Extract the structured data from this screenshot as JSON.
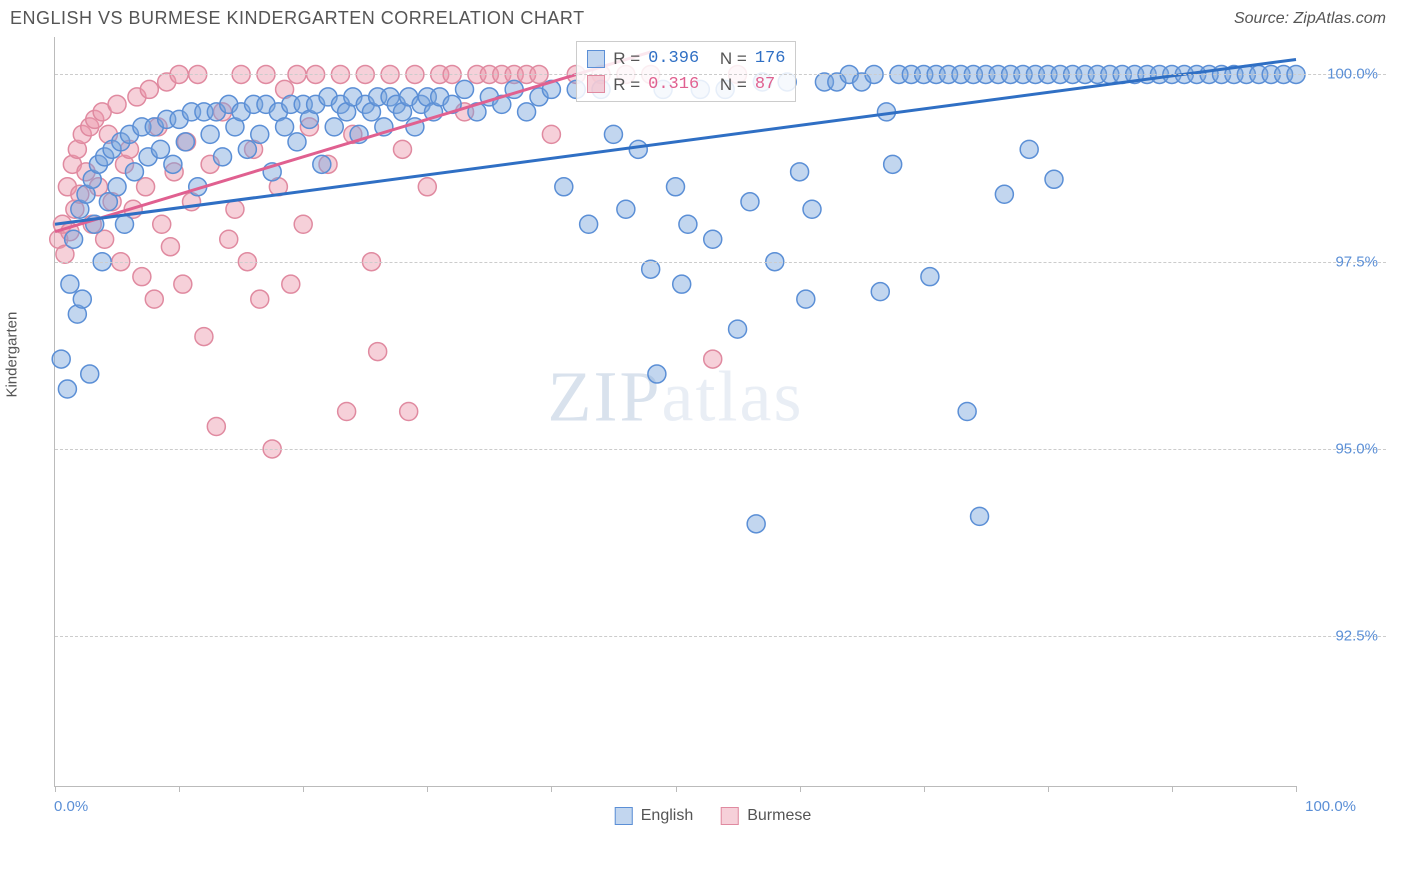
{
  "title": "ENGLISH VS BURMESE KINDERGARTEN CORRELATION CHART",
  "source": "Source: ZipAtlas.com",
  "ylabel": "Kindergarten",
  "watermark": {
    "part1": "ZIP",
    "part2": "atlas"
  },
  "axes": {
    "xlim": [
      0,
      100
    ],
    "ylim": [
      90.5,
      100.5
    ],
    "xticks": [
      0,
      10,
      20,
      30,
      40,
      50,
      60,
      70,
      80,
      90,
      100
    ],
    "yticks": [
      92.5,
      95.0,
      97.5,
      100.0
    ],
    "ytick_labels": [
      "92.5%",
      "95.0%",
      "97.5%",
      "100.0%"
    ],
    "x_left_label": "0.0%",
    "x_right_label": "100.0%",
    "grid_color": "#cccccc",
    "axis_color": "#bbbbbb",
    "tick_label_color": "#5b8fd6"
  },
  "series": {
    "english": {
      "label": "English",
      "color_fill": "rgba(120,165,220,0.45)",
      "color_stroke": "#5b8fd6",
      "line_color": "#2f6fc4",
      "marker_radius": 9,
      "stroke_width": 1.5,
      "line_width": 3,
      "regression": {
        "x1": 0,
        "y1": 98.0,
        "x2": 100,
        "y2": 100.2
      },
      "R_label": "R =",
      "R": "0.396",
      "N_label": "N =",
      "N": "176",
      "points": [
        [
          0.5,
          96.2
        ],
        [
          1,
          95.8
        ],
        [
          1.2,
          97.2
        ],
        [
          1.5,
          97.8
        ],
        [
          1.8,
          96.8
        ],
        [
          2,
          98.2
        ],
        [
          2.2,
          97.0
        ],
        [
          2.5,
          98.4
        ],
        [
          2.8,
          96.0
        ],
        [
          3,
          98.6
        ],
        [
          3.2,
          98.0
        ],
        [
          3.5,
          98.8
        ],
        [
          3.8,
          97.5
        ],
        [
          4,
          98.9
        ],
        [
          4.3,
          98.3
        ],
        [
          4.6,
          99.0
        ],
        [
          5,
          98.5
        ],
        [
          5.3,
          99.1
        ],
        [
          5.6,
          98.0
        ],
        [
          6,
          99.2
        ],
        [
          6.4,
          98.7
        ],
        [
          7,
          99.3
        ],
        [
          7.5,
          98.9
        ],
        [
          8,
          99.3
        ],
        [
          8.5,
          99.0
        ],
        [
          9,
          99.4
        ],
        [
          9.5,
          98.8
        ],
        [
          10,
          99.4
        ],
        [
          10.5,
          99.1
        ],
        [
          11,
          99.5
        ],
        [
          11.5,
          98.5
        ],
        [
          12,
          99.5
        ],
        [
          12.5,
          99.2
        ],
        [
          13,
          99.5
        ],
        [
          13.5,
          98.9
        ],
        [
          14,
          99.6
        ],
        [
          14.5,
          99.3
        ],
        [
          15,
          99.5
        ],
        [
          15.5,
          99.0
        ],
        [
          16,
          99.6
        ],
        [
          16.5,
          99.2
        ],
        [
          17,
          99.6
        ],
        [
          17.5,
          98.7
        ],
        [
          18,
          99.5
        ],
        [
          18.5,
          99.3
        ],
        [
          19,
          99.6
        ],
        [
          19.5,
          99.1
        ],
        [
          20,
          99.6
        ],
        [
          20.5,
          99.4
        ],
        [
          21,
          99.6
        ],
        [
          21.5,
          98.8
        ],
        [
          22,
          99.7
        ],
        [
          22.5,
          99.3
        ],
        [
          23,
          99.6
        ],
        [
          23.5,
          99.5
        ],
        [
          24,
          99.7
        ],
        [
          24.5,
          99.2
        ],
        [
          25,
          99.6
        ],
        [
          25.5,
          99.5
        ],
        [
          26,
          99.7
        ],
        [
          26.5,
          99.3
        ],
        [
          27,
          99.7
        ],
        [
          27.5,
          99.6
        ],
        [
          28,
          99.5
        ],
        [
          28.5,
          99.7
        ],
        [
          29,
          99.3
        ],
        [
          29.5,
          99.6
        ],
        [
          30,
          99.7
        ],
        [
          30.5,
          99.5
        ],
        [
          31,
          99.7
        ],
        [
          32,
          99.6
        ],
        [
          33,
          99.8
        ],
        [
          34,
          99.5
        ],
        [
          35,
          99.7
        ],
        [
          36,
          99.6
        ],
        [
          37,
          99.8
        ],
        [
          38,
          99.5
        ],
        [
          39,
          99.7
        ],
        [
          40,
          99.8
        ],
        [
          41,
          98.5
        ],
        [
          42,
          99.8
        ],
        [
          43,
          98.0
        ],
        [
          44,
          99.8
        ],
        [
          45,
          99.2
        ],
        [
          46,
          98.2
        ],
        [
          47,
          99.0
        ],
        [
          48,
          97.4
        ],
        [
          48.5,
          96.0
        ],
        [
          49,
          99.8
        ],
        [
          50,
          98.5
        ],
        [
          50.5,
          97.2
        ],
        [
          51,
          98.0
        ],
        [
          52,
          99.8
        ],
        [
          53,
          97.8
        ],
        [
          54,
          99.8
        ],
        [
          55,
          96.6
        ],
        [
          56,
          98.3
        ],
        [
          56.5,
          94.0
        ],
        [
          57,
          99.9
        ],
        [
          58,
          97.5
        ],
        [
          59,
          99.9
        ],
        [
          60,
          98.7
        ],
        [
          60.5,
          97.0
        ],
        [
          61,
          98.2
        ],
        [
          62,
          99.9
        ],
        [
          63,
          99.9
        ],
        [
          64,
          100.0
        ],
        [
          65,
          99.9
        ],
        [
          66,
          100.0
        ],
        [
          66.5,
          97.1
        ],
        [
          67,
          99.5
        ],
        [
          67.5,
          98.8
        ],
        [
          68,
          100.0
        ],
        [
          69,
          100.0
        ],
        [
          70,
          100.0
        ],
        [
          70.5,
          97.3
        ],
        [
          71,
          100.0
        ],
        [
          72,
          100.0
        ],
        [
          73,
          100.0
        ],
        [
          73.5,
          95.5
        ],
        [
          74,
          100.0
        ],
        [
          74.5,
          94.1
        ],
        [
          75,
          100.0
        ],
        [
          76,
          100.0
        ],
        [
          76.5,
          98.4
        ],
        [
          77,
          100.0
        ],
        [
          78,
          100.0
        ],
        [
          78.5,
          99.0
        ],
        [
          79,
          100.0
        ],
        [
          80,
          100.0
        ],
        [
          80.5,
          98.6
        ],
        [
          81,
          100.0
        ],
        [
          82,
          100.0
        ],
        [
          83,
          100.0
        ],
        [
          84,
          100.0
        ],
        [
          85,
          100.0
        ],
        [
          86,
          100.0
        ],
        [
          87,
          100.0
        ],
        [
          88,
          100.0
        ],
        [
          89,
          100.0
        ],
        [
          90,
          100.0
        ],
        [
          91,
          100.0
        ],
        [
          92,
          100.0
        ],
        [
          93,
          100.0
        ],
        [
          94,
          100.0
        ],
        [
          95,
          100.0
        ],
        [
          96,
          100.0
        ],
        [
          97,
          100.0
        ],
        [
          98,
          100.0
        ],
        [
          99,
          100.0
        ],
        [
          100,
          100.0
        ]
      ]
    },
    "burmese": {
      "label": "Burmese",
      "color_fill": "rgba(235,150,170,0.45)",
      "color_stroke": "#e08aa0",
      "line_color": "#e06090",
      "marker_radius": 9,
      "stroke_width": 1.5,
      "line_width": 3,
      "regression": {
        "x1": 0,
        "y1": 97.9,
        "x2": 48,
        "y2": 100.3
      },
      "R_label": "R =",
      "R": "0.316",
      "N_label": "N =",
      "N": "87",
      "points": [
        [
          0.3,
          97.8
        ],
        [
          0.6,
          98.0
        ],
        [
          0.8,
          97.6
        ],
        [
          1,
          98.5
        ],
        [
          1.2,
          97.9
        ],
        [
          1.4,
          98.8
        ],
        [
          1.6,
          98.2
        ],
        [
          1.8,
          99.0
        ],
        [
          2,
          98.4
        ],
        [
          2.2,
          99.2
        ],
        [
          2.5,
          98.7
        ],
        [
          2.8,
          99.3
        ],
        [
          3,
          98.0
        ],
        [
          3.2,
          99.4
        ],
        [
          3.5,
          98.5
        ],
        [
          3.8,
          99.5
        ],
        [
          4,
          97.8
        ],
        [
          4.3,
          99.2
        ],
        [
          4.6,
          98.3
        ],
        [
          5,
          99.6
        ],
        [
          5.3,
          97.5
        ],
        [
          5.6,
          98.8
        ],
        [
          6,
          99.0
        ],
        [
          6.3,
          98.2
        ],
        [
          6.6,
          99.7
        ],
        [
          7,
          97.3
        ],
        [
          7.3,
          98.5
        ],
        [
          7.6,
          99.8
        ],
        [
          8,
          97.0
        ],
        [
          8.3,
          99.3
        ],
        [
          8.6,
          98.0
        ],
        [
          9,
          99.9
        ],
        [
          9.3,
          97.7
        ],
        [
          9.6,
          98.7
        ],
        [
          10,
          100.0
        ],
        [
          10.3,
          97.2
        ],
        [
          10.6,
          99.1
        ],
        [
          11,
          98.3
        ],
        [
          11.5,
          100.0
        ],
        [
          12,
          96.5
        ],
        [
          12.5,
          98.8
        ],
        [
          13,
          95.3
        ],
        [
          13.5,
          99.5
        ],
        [
          14,
          97.8
        ],
        [
          14.5,
          98.2
        ],
        [
          15,
          100.0
        ],
        [
          15.5,
          97.5
        ],
        [
          16,
          99.0
        ],
        [
          16.5,
          97.0
        ],
        [
          17,
          100.0
        ],
        [
          17.5,
          95.0
        ],
        [
          18,
          98.5
        ],
        [
          18.5,
          99.8
        ],
        [
          19,
          97.2
        ],
        [
          19.5,
          100.0
        ],
        [
          20,
          98.0
        ],
        [
          20.5,
          99.3
        ],
        [
          21,
          100.0
        ],
        [
          22,
          98.8
        ],
        [
          23,
          100.0
        ],
        [
          23.5,
          95.5
        ],
        [
          24,
          99.2
        ],
        [
          25,
          100.0
        ],
        [
          25.5,
          97.5
        ],
        [
          26,
          96.3
        ],
        [
          27,
          100.0
        ],
        [
          28,
          99.0
        ],
        [
          28.5,
          95.5
        ],
        [
          29,
          100.0
        ],
        [
          30,
          98.5
        ],
        [
          31,
          100.0
        ],
        [
          32,
          100.0
        ],
        [
          33,
          99.5
        ],
        [
          34,
          100.0
        ],
        [
          35,
          100.0
        ],
        [
          36,
          100.0
        ],
        [
          37,
          100.0
        ],
        [
          38,
          100.0
        ],
        [
          39,
          100.0
        ],
        [
          40,
          99.2
        ],
        [
          42,
          100.0
        ],
        [
          44,
          100.0
        ],
        [
          46,
          100.0
        ],
        [
          48,
          100.0
        ],
        [
          53,
          96.2
        ],
        [
          55,
          100.0
        ]
      ]
    }
  },
  "legend_items": [
    "english",
    "burmese"
  ]
}
